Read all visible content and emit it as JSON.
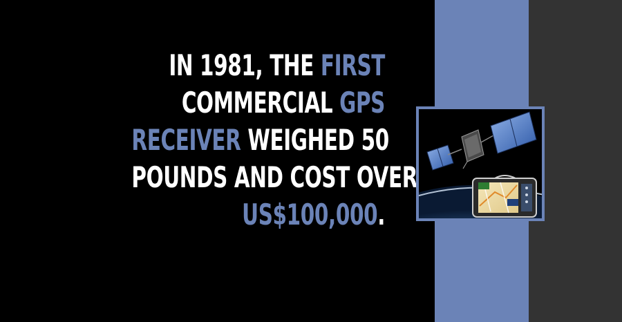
{
  "fact": {
    "line1_a": "IN 1981, THE ",
    "line1_b": "FIRST",
    "line2_a": "COMMERCIAL ",
    "line2_b": "GPS",
    "line3_a": "RECEIVER",
    "line3_b": " WEIGHED 50",
    "line4": "POUNDS AND COST OVER",
    "line5_a": "US$100,000",
    "line5_b": "."
  },
  "colors": {
    "background": "#000000",
    "accent": "#6b83b7",
    "side_panel": "#333333",
    "text": "#ffffff"
  },
  "illustration": {
    "subject": "gps-satellite-and-navigation-device"
  }
}
